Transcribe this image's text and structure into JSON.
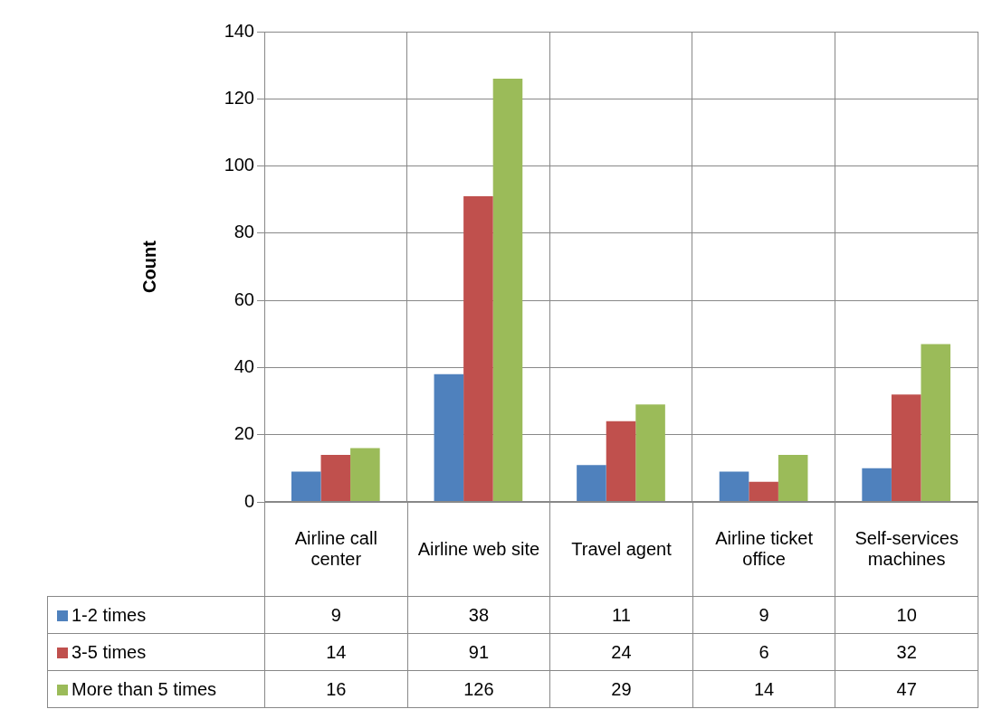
{
  "chart_data": {
    "type": "bar",
    "ylabel": "Count",
    "categories": [
      "Airline call center",
      "Airline web site",
      "Travel agent",
      "Airline ticket office",
      "Self-services machines"
    ],
    "series": [
      {
        "name": "1-2 times",
        "color": "#4f81bd",
        "values": [
          9,
          38,
          11,
          9,
          10
        ]
      },
      {
        "name": "3-5 times",
        "color": "#c0504d",
        "values": [
          14,
          91,
          24,
          6,
          32
        ]
      },
      {
        "name": "More than 5 times",
        "color": "#9bbb59",
        "values": [
          16,
          126,
          29,
          14,
          47
        ]
      }
    ],
    "ylim": [
      0,
      140
    ],
    "yticks": [
      0,
      20,
      40,
      60,
      80,
      100,
      120,
      140
    ],
    "grid": true,
    "legend": "bottom",
    "data_labels": true
  }
}
